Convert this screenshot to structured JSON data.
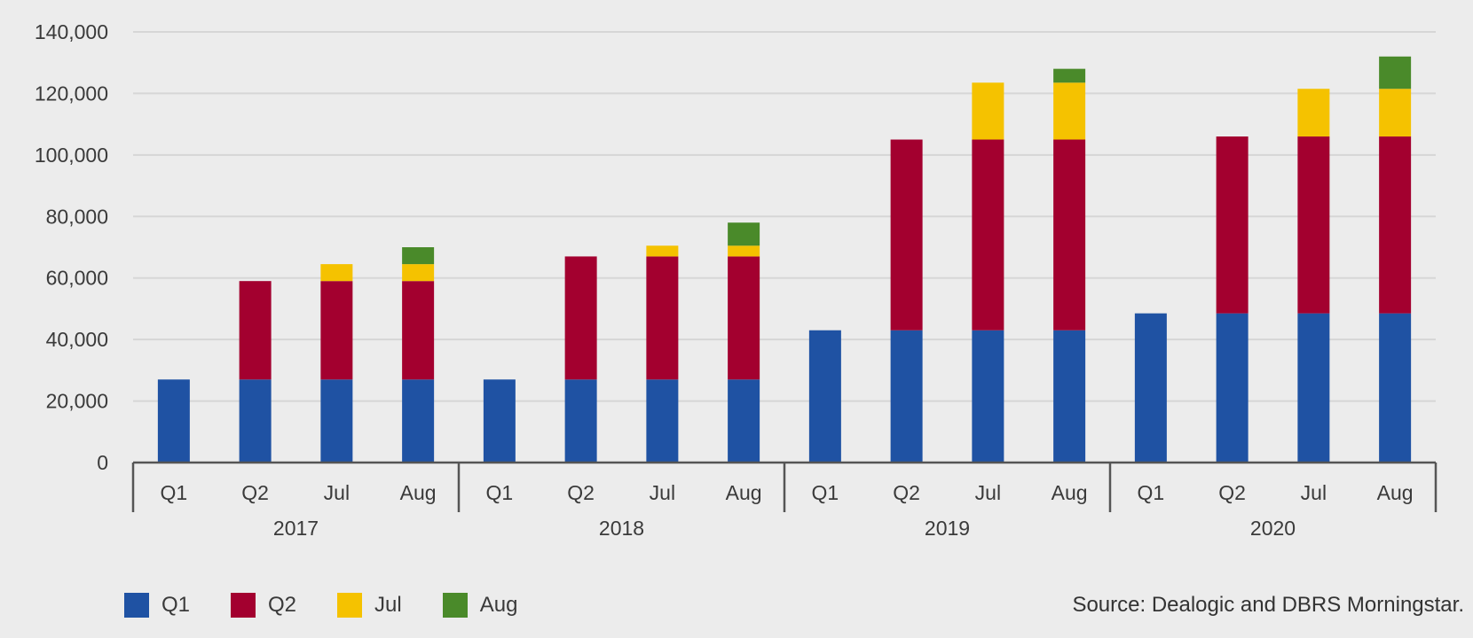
{
  "chart_data": {
    "type": "bar",
    "stacked": true,
    "ylim": [
      0,
      140000
    ],
    "yticks": [
      0,
      20000,
      40000,
      60000,
      80000,
      100000,
      120000,
      140000
    ],
    "ytick_labels": [
      "0",
      "20,000",
      "40,000",
      "60,000",
      "80,000",
      "100,000",
      "120,000",
      "140,000"
    ],
    "grid": true,
    "legend_position": "bottom-left",
    "groups": [
      {
        "label": "2017",
        "categories": [
          "Q1",
          "Q2",
          "Jul",
          "Aug"
        ]
      },
      {
        "label": "2018",
        "categories": [
          "Q1",
          "Q2",
          "Jul",
          "Aug"
        ]
      },
      {
        "label": "2019",
        "categories": [
          "Q1",
          "Q2",
          "Jul",
          "Aug"
        ]
      },
      {
        "label": "2020",
        "categories": [
          "Q1",
          "Q2",
          "Jul",
          "Aug"
        ]
      }
    ],
    "series": [
      {
        "name": "Q1",
        "color": "#1f52a3",
        "values": [
          27000,
          27000,
          27000,
          27000,
          27000,
          27000,
          27000,
          27000,
          43000,
          43000,
          43000,
          43000,
          48500,
          48500,
          48500,
          48500
        ]
      },
      {
        "name": "Q2",
        "color": "#a3002f",
        "values": [
          0,
          32000,
          32000,
          32000,
          0,
          40000,
          40000,
          40000,
          0,
          62000,
          62000,
          62000,
          0,
          57500,
          57500,
          57500
        ]
      },
      {
        "name": "Jul",
        "color": "#f5c200",
        "values": [
          0,
          0,
          5500,
          5500,
          0,
          0,
          3500,
          3500,
          0,
          0,
          18500,
          18500,
          0,
          0,
          15500,
          15500
        ]
      },
      {
        "name": "Aug",
        "color": "#4a8a2a",
        "values": [
          0,
          0,
          0,
          5500,
          0,
          0,
          0,
          7500,
          0,
          0,
          0,
          4500,
          0,
          0,
          0,
          10500
        ]
      }
    ]
  },
  "source": "Source: Dealogic and DBRS Morningstar."
}
